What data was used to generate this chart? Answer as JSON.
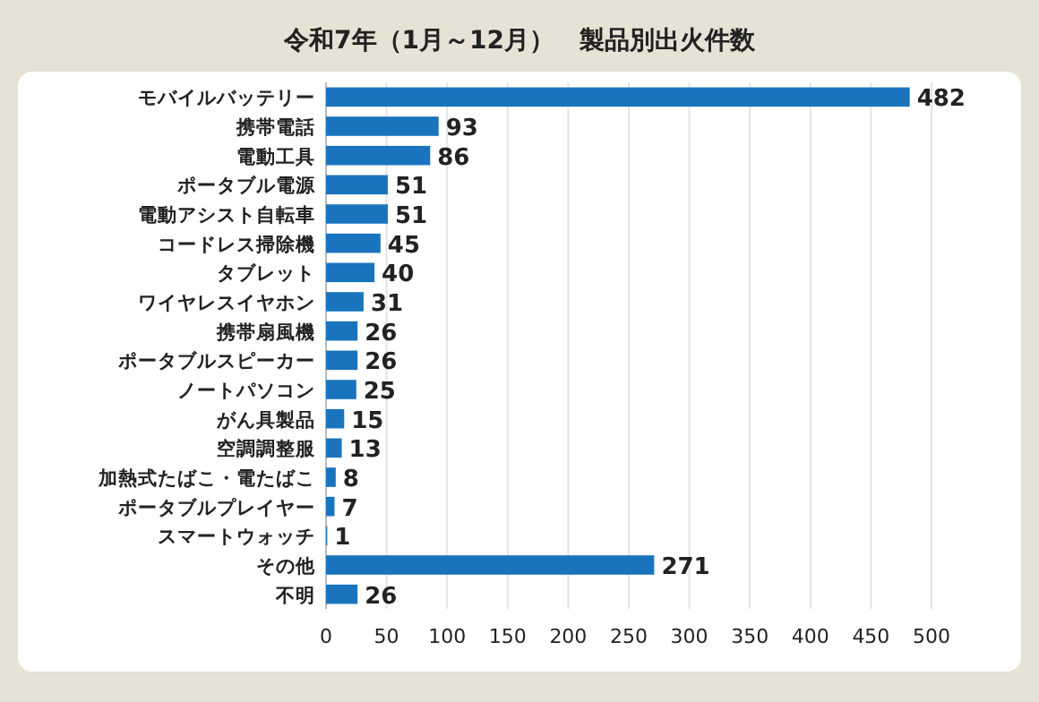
{
  "chart_data": {
    "type": "bar",
    "orientation": "horizontal",
    "title": "令和7年（1月～12月）　製品別出火件数",
    "categories": [
      "モバイルバッテリー",
      "携帯電話",
      "電動工具",
      "ポータブル電源",
      "電動アシスト自転車",
      "コードレス掃除機",
      "タブレット",
      "ワイヤレスイヤホン",
      "携帯扇風機",
      "ポータブルスピーカー",
      "ノートパソコン",
      "がん具製品",
      "空調調整服",
      "加熱式たばこ・電たばこ",
      "ポータブルプレイヤー",
      "スマートウォッチ",
      "その他",
      "不明"
    ],
    "values": [
      482,
      93,
      86,
      51,
      51,
      45,
      40,
      31,
      26,
      26,
      25,
      15,
      13,
      8,
      7,
      1,
      271,
      26
    ],
    "color": "#1a74bd",
    "xlim": [
      0,
      500
    ],
    "xticks": [
      0,
      50,
      100,
      150,
      200,
      250,
      300,
      350,
      400,
      450,
      500
    ],
    "grid": "x",
    "data_labels": true
  }
}
